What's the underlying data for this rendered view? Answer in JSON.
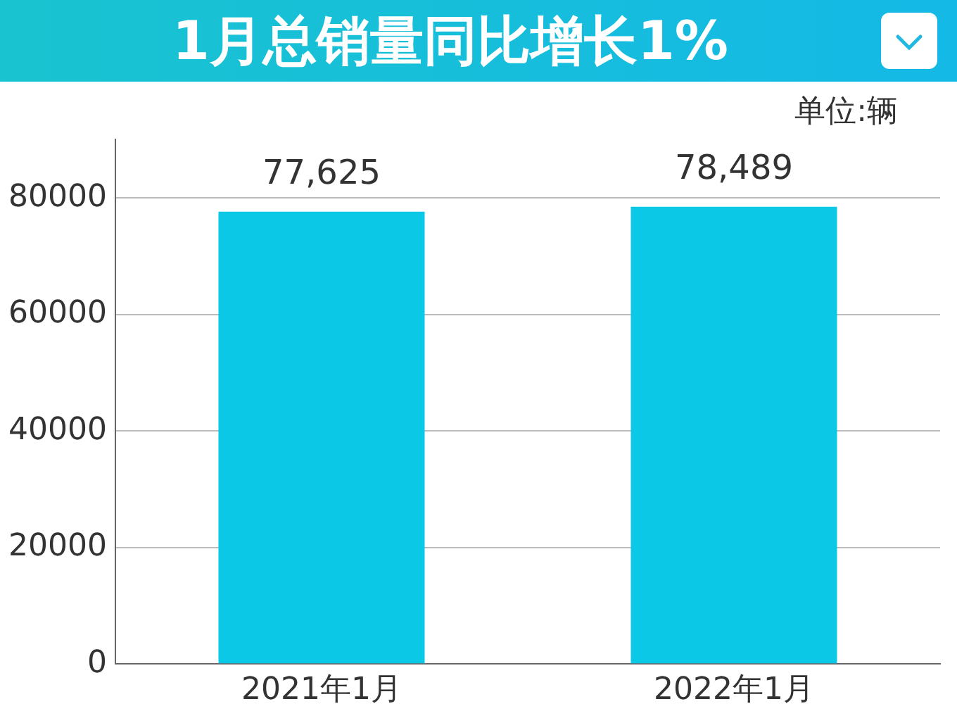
{
  "chart_data": {
    "type": "bar",
    "title": "1月总销量同比增长1%",
    "annotations": [
      "单位:辆"
    ],
    "categories": [
      "2021年1月",
      "2022年1月"
    ],
    "values": [
      77625,
      78489
    ],
    "value_labels": [
      "77,625",
      "78,489"
    ],
    "color": "#0ac8e6",
    "ylim": [
      0,
      90000
    ],
    "yticks": [
      0,
      20000,
      40000,
      60000,
      80000
    ],
    "grid": "y"
  }
}
